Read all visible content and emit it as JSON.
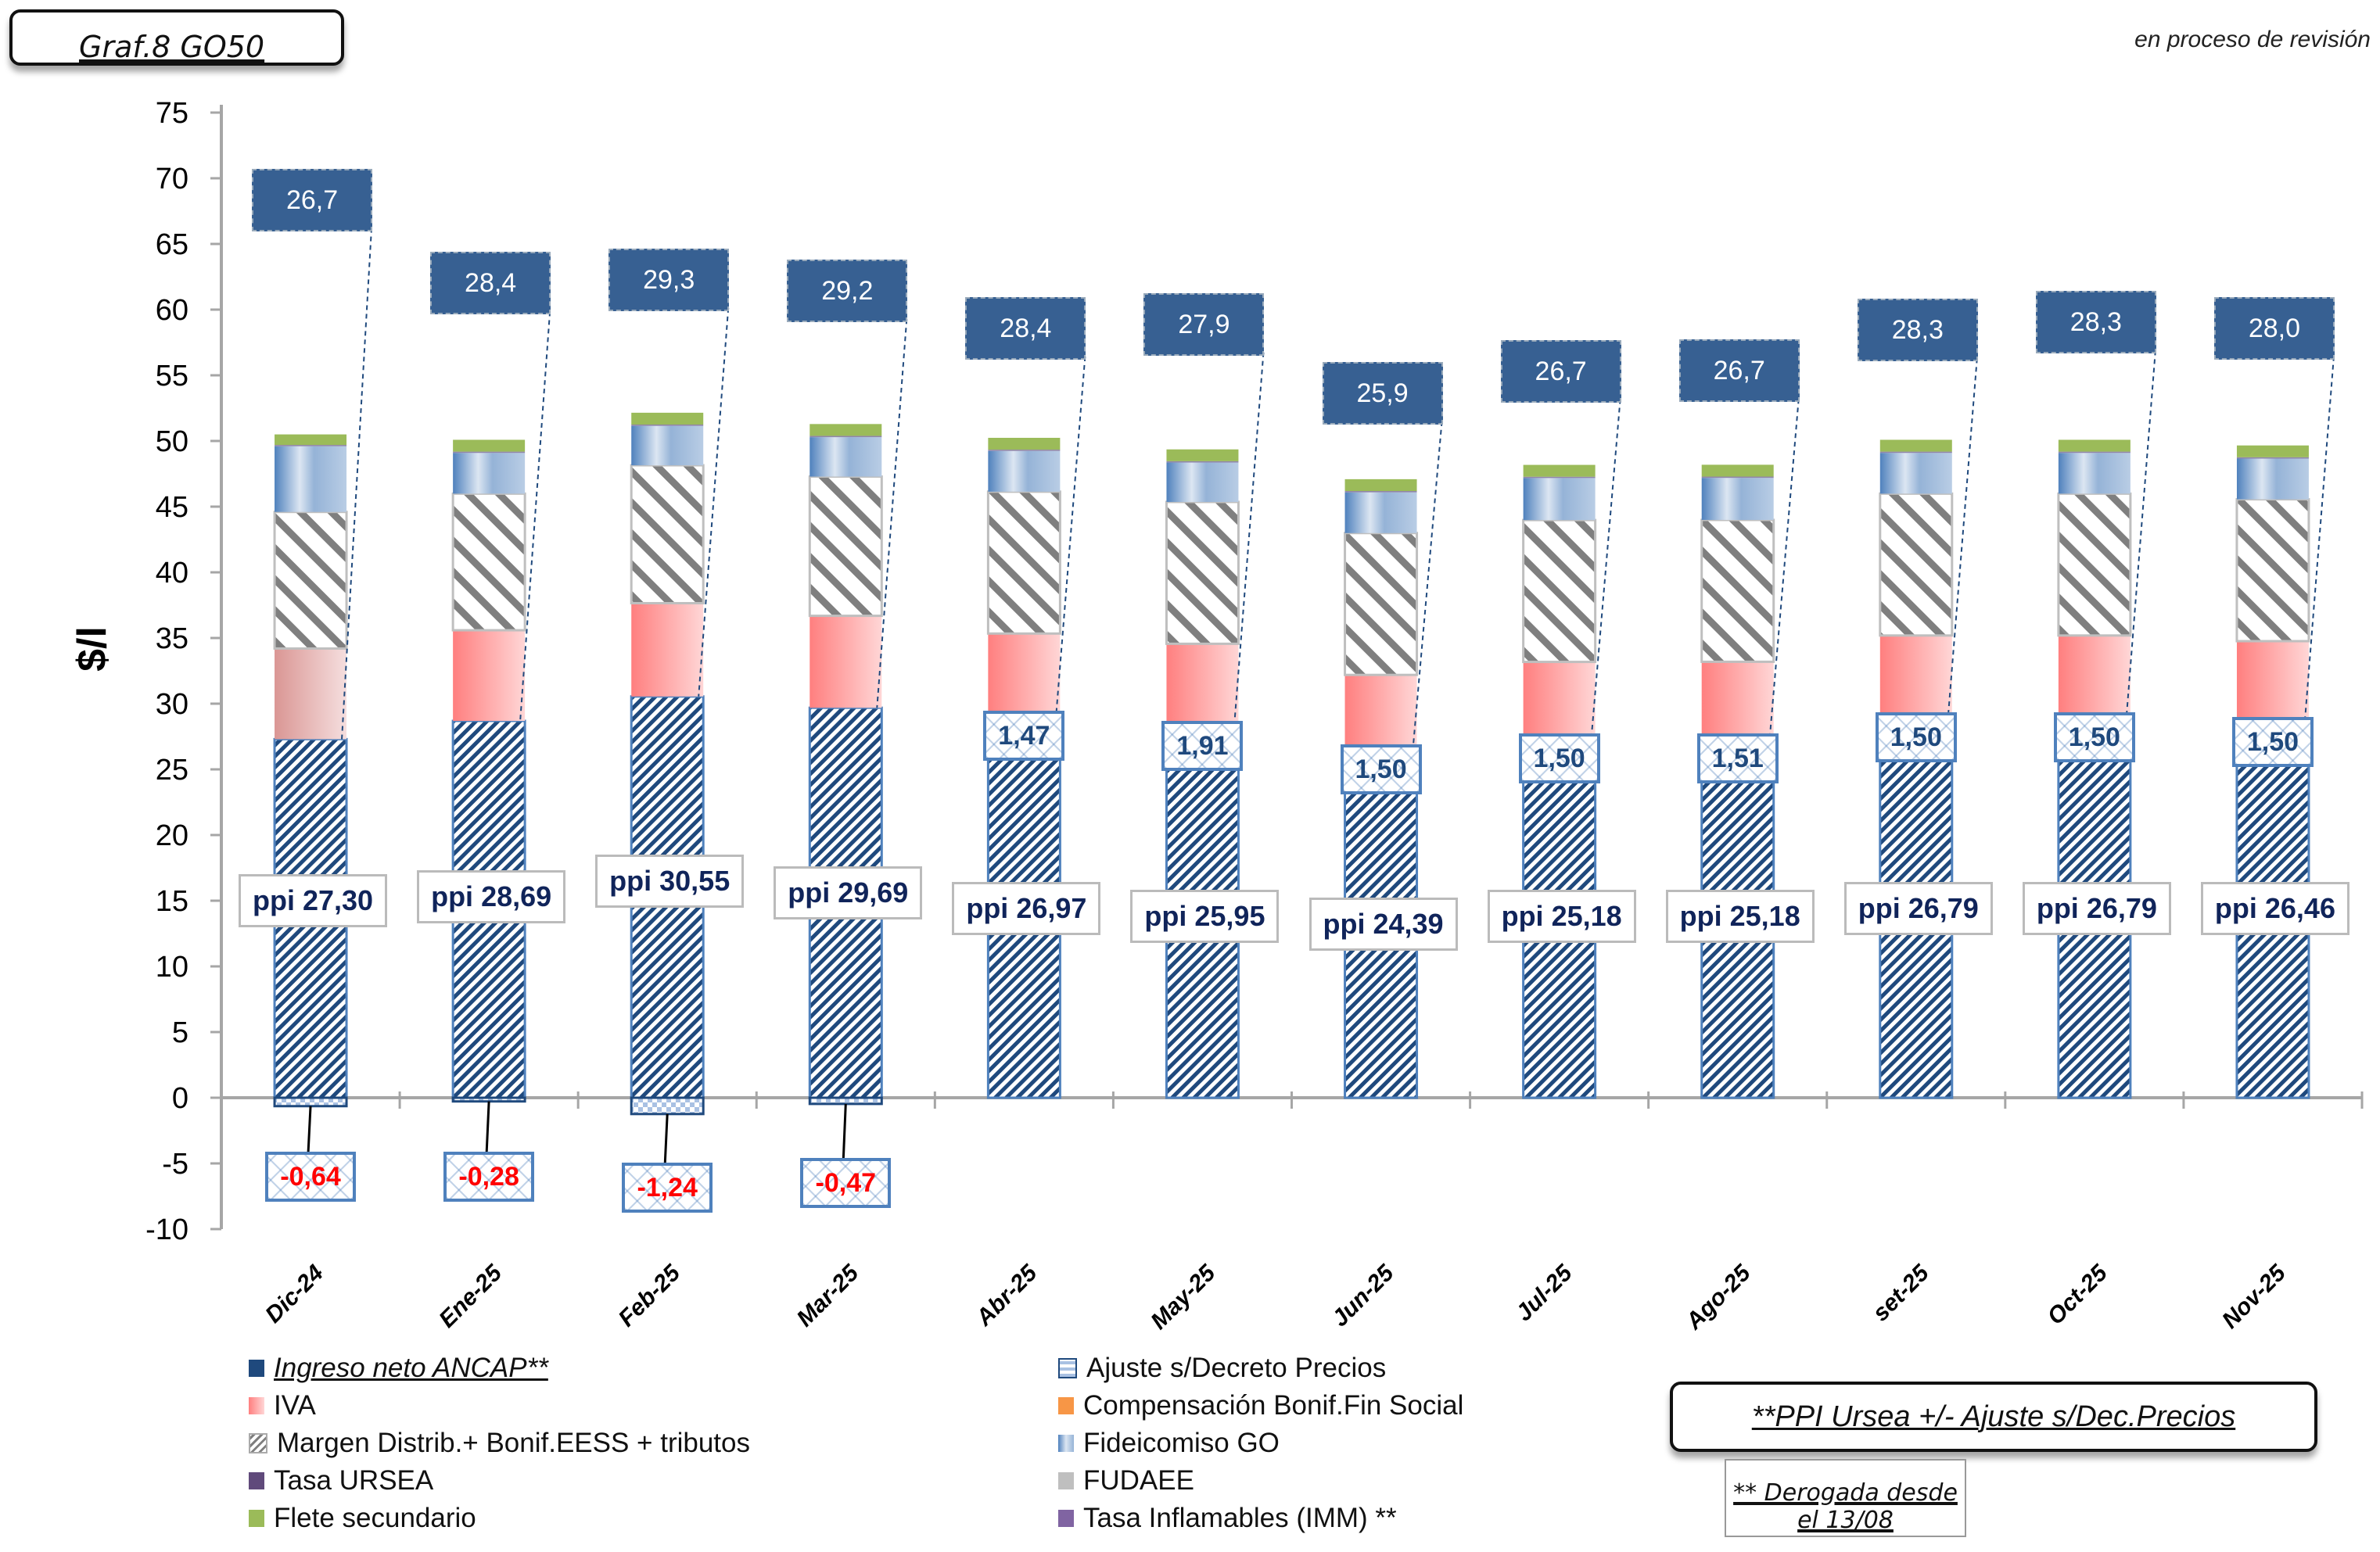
{
  "header": {
    "title": "Graf.8  GO50",
    "status": "en proceso de revisión"
  },
  "notes": {
    "ppi_note": "**PPI Ursea +/- Ajuste s/Dec.Precios",
    "derogada_note": "** Derogada desde el 13/08"
  },
  "legend": [
    {
      "key": "ingreso",
      "label": "Ingreso neto ANCAP**",
      "color": "#1f497d",
      "italic_underline": true
    },
    {
      "key": "ajuste",
      "label": "Ajuste s/Decreto Precios",
      "color": "#4f81bd"
    },
    {
      "key": "iva",
      "label": "IVA",
      "color": "#ff8080"
    },
    {
      "key": "compensacion",
      "label": "Compensación Bonif.Fin Social",
      "color": "#f79646"
    },
    {
      "key": "margen",
      "label": "Margen Distrib.+ Bonif.EESS + tributos",
      "color": "#808080"
    },
    {
      "key": "fideicomiso",
      "label": "Fideicomiso GO",
      "color": "#95b3d7"
    },
    {
      "key": "ursea",
      "label": "Tasa URSEA",
      "color": "#604a7b"
    },
    {
      "key": "fudaee",
      "label": "FUDAEE",
      "color": "#bfbfbf"
    },
    {
      "key": "flete",
      "label": "Flete secundario",
      "color": "#9bbb59"
    },
    {
      "key": "inflamables",
      "label": "Tasa Inflamables (IMM) **",
      "color": "#8064a2"
    }
  ],
  "chart_data": {
    "type": "bar",
    "stacked": true,
    "title": "Graf.8  GO50",
    "xlabel": "",
    "ylabel": "$/l",
    "ylim": [
      -10,
      75
    ],
    "yticks": [
      -10,
      -5,
      0,
      5,
      10,
      15,
      20,
      25,
      30,
      35,
      40,
      45,
      50,
      55,
      60,
      65,
      70,
      75
    ],
    "grid": false,
    "legend_position": "bottom",
    "categories": [
      "Dic-24",
      "Ene-25",
      "Feb-25",
      "Mar-25",
      "Abr-25",
      "May-25",
      "Jun-25",
      "Jul-25",
      "Ago-25",
      "set-25",
      "Oct-25",
      "Nov-25"
    ],
    "series": [
      {
        "name": "PPI Ursea",
        "values": [
          27.3,
          28.69,
          30.55,
          29.69,
          26.97,
          25.95,
          24.39,
          25.18,
          25.18,
          26.79,
          26.79,
          26.46
        ]
      },
      {
        "name": "Ajuste s/Decreto Precios",
        "values": [
          -0.64,
          -0.28,
          -1.24,
          -0.47,
          1.47,
          1.91,
          1.5,
          1.5,
          1.51,
          1.5,
          1.5,
          1.5
        ]
      },
      {
        "name": "Ingreso neto ANCAP**",
        "values": [
          26.7,
          28.4,
          29.3,
          29.2,
          28.4,
          27.9,
          25.9,
          26.7,
          26.7,
          28.3,
          28.3,
          28.0
        ]
      },
      {
        "name": "IVA",
        "values": [
          6.9,
          6.9,
          7.1,
          7.0,
          6.9,
          6.7,
          6.3,
          6.5,
          6.5,
          6.9,
          6.9,
          6.8
        ]
      },
      {
        "name": "Margen Distrib.+ Bonif.EESS + tributos",
        "values": [
          10.4,
          10.4,
          10.5,
          10.6,
          10.8,
          10.8,
          10.8,
          10.8,
          10.8,
          10.8,
          10.8,
          10.8
        ]
      },
      {
        "name": "Compensación Bonif.Fin Social",
        "values": [
          0,
          0,
          0,
          0,
          0,
          0,
          0,
          0,
          0,
          0,
          0,
          0
        ]
      },
      {
        "name": "Fideicomiso GO",
        "values": [
          5.0,
          3.1,
          3.0,
          3.0,
          3.1,
          3.0,
          3.1,
          3.2,
          3.2,
          3.1,
          3.1,
          3.1
        ]
      },
      {
        "name": "Tasa URSEA",
        "values": [
          0.1,
          0.1,
          0.1,
          0.1,
          0.1,
          0.1,
          0.1,
          0.1,
          0.1,
          0.1,
          0.1,
          0.1
        ]
      },
      {
        "name": "FUDAEE",
        "values": [
          0,
          0,
          0,
          0,
          0,
          0,
          0,
          0,
          0,
          0,
          0,
          0
        ]
      },
      {
        "name": "Flete secundario",
        "values": [
          0.8,
          0.9,
          0.9,
          0.9,
          0.9,
          0.9,
          0.9,
          0.9,
          0.9,
          0.9,
          0.9,
          0.9
        ]
      },
      {
        "name": "Tasa Inflamables (IMM) **",
        "values": [
          0,
          0,
          0,
          0,
          0,
          0,
          0,
          0,
          0,
          0,
          0,
          0
        ]
      }
    ],
    "labels": {
      "ingreso_total": [
        "26,7",
        "28,4",
        "29,3",
        "29,2",
        "28,4",
        "27,9",
        "25,9",
        "26,7",
        "26,7",
        "28,3",
        "28,3",
        "28,0"
      ],
      "ppi": [
        "ppi 27,30",
        "ppi 28,69",
        "ppi 30,55",
        "ppi 29,69",
        "ppi 26,97",
        "ppi 25,95",
        "ppi 24,39",
        "ppi 25,18",
        "ppi 25,18",
        "ppi 26,79",
        "ppi 26,79",
        "ppi 26,46"
      ],
      "ajuste": [
        "-0,64",
        "-0,28",
        "-1,24",
        "-0,47",
        "1,47",
        "1,91",
        "1,50",
        "1,50",
        "1,51",
        "1,50",
        "1,50",
        "1,50"
      ]
    }
  }
}
